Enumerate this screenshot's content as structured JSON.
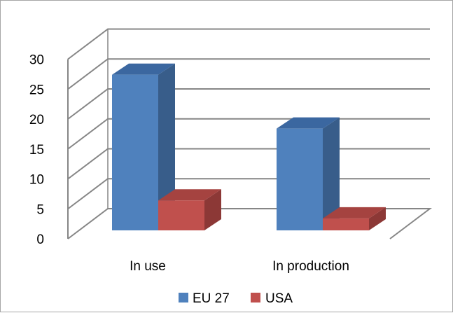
{
  "chart_data": {
    "type": "bar",
    "categories": [
      "In use",
      "In production"
    ],
    "series": [
      {
        "name": "EU 27",
        "values": [
          26,
          17
        ]
      },
      {
        "name": "USA",
        "values": [
          5,
          2
        ]
      }
    ],
    "ylim": [
      0,
      30
    ],
    "yticks": [
      "0",
      "5",
      "10",
      "15",
      "20",
      "25",
      "30"
    ],
    "grid": true,
    "legend": "bottom",
    "style": "3d-clustered-column",
    "colors": {
      "EU 27": {
        "front": "#4f81bd",
        "side": "#385d8a",
        "top": "#3b67a0"
      },
      "USA": {
        "front": "#c0504d",
        "side": "#8c3836",
        "top": "#a54340"
      },
      "grid": "#868686"
    }
  }
}
